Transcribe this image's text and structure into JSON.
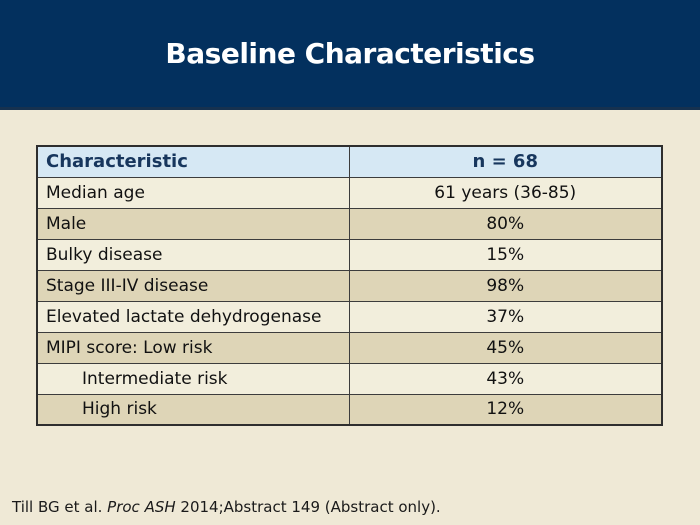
{
  "slide": {
    "title": "Baseline Characteristics",
    "footer": {
      "prefix": "Till BG et al. ",
      "italic": "Proc ASH",
      "suffix": " 2014;Abstract 149 (Abstract only)."
    }
  },
  "table": {
    "headers": {
      "characteristic": "Characteristic",
      "n": "n = 68"
    },
    "rows": [
      {
        "label": "Median age",
        "value": "61 years (36-85)",
        "indent": false
      },
      {
        "label": "Male",
        "value": "80%",
        "indent": false
      },
      {
        "label": "Bulky disease",
        "value": "15%",
        "indent": false
      },
      {
        "label": "Stage III-IV disease",
        "value": "98%",
        "indent": false
      },
      {
        "label": "Elevated lactate dehydrogenase",
        "value": "37%",
        "indent": false
      },
      {
        "label": "MIPI score: Low risk",
        "value": "45%",
        "indent": false
      },
      {
        "label": "Intermediate risk",
        "value": "43%",
        "indent": true
      },
      {
        "label": "High risk",
        "value": "12%",
        "indent": true
      }
    ]
  },
  "colors": {
    "header_band": "#03305e",
    "header_band_edge": "#16314f",
    "title_text": "#ffffff",
    "header_row_bg": "#d6e8f4",
    "header_row_text": "#17365d",
    "row_light": "#f2eedc",
    "row_dark": "#ded5b7",
    "page_background": "#efe9d6",
    "table_border": "#3c3c3c",
    "body_text": "#111111"
  }
}
